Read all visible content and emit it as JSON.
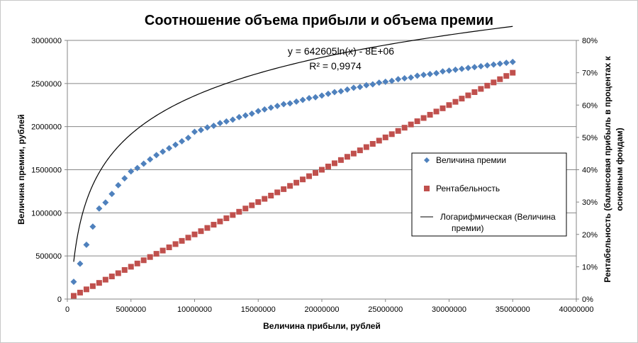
{
  "chart_data": {
    "type": "scatter",
    "title": "Соотношение объема прибыли и объема премии",
    "xlabel": "Величина прибыли, рублей",
    "ylabel": "Величина премии, рублей",
    "y2label_line1": "Рентабельность (балансовая прибыль в процентах к",
    "y2label_line2": "основным фондам)",
    "xlim": [
      0,
      40000000
    ],
    "ylim": [
      0,
      3000000
    ],
    "y2lim": [
      0,
      0.8
    ],
    "x_ticks": [
      0,
      5000000,
      10000000,
      15000000,
      20000000,
      25000000,
      30000000,
      35000000,
      40000000
    ],
    "x_tick_labels": [
      "0",
      "5000000",
      "10000000",
      "15000000",
      "20000000",
      "25000000",
      "30000000",
      "35000000",
      "40000000"
    ],
    "y_ticks": [
      0,
      500000,
      1000000,
      1500000,
      2000000,
      2500000,
      3000000
    ],
    "y_tick_labels": [
      "0",
      "500000",
      "1000000",
      "1500000",
      "2000000",
      "2500000",
      "3000000"
    ],
    "y2_ticks": [
      0,
      0.1,
      0.2,
      0.3,
      0.4,
      0.5,
      0.6,
      0.7,
      0.8
    ],
    "y2_tick_labels": [
      "0%",
      "10%",
      "20%",
      "30%",
      "40%",
      "50%",
      "60%",
      "70%",
      "80%"
    ],
    "grid": "horizontal",
    "legend_position": "right",
    "equation": "y = 642605ln(x) - 8E+06",
    "r_squared": "R² = 0,9974",
    "series": [
      {
        "name": "Величина премии",
        "marker": "diamond",
        "color": "#4f81bd",
        "axis": "left",
        "x": [
          500000,
          1000000,
          1500000,
          2000000,
          2500000,
          3000000,
          3500000,
          4000000,
          4500000,
          5000000,
          5500000,
          6000000,
          6500000,
          7000000,
          7500000,
          8000000,
          8500000,
          9000000,
          9500000,
          10000000,
          10500000,
          11000000,
          11500000,
          12000000,
          12500000,
          13000000,
          13500000,
          14000000,
          14500000,
          15000000,
          15500000,
          16000000,
          16500000,
          17000000,
          17500000,
          18000000,
          18500000,
          19000000,
          19500000,
          20000000,
          20500000,
          21000000,
          21500000,
          22000000,
          22500000,
          23000000,
          23500000,
          24000000,
          24500000,
          25000000,
          25500000,
          26000000,
          26500000,
          27000000,
          27500000,
          28000000,
          28500000,
          29000000,
          29500000,
          30000000,
          30500000,
          31000000,
          31500000,
          32000000,
          32500000,
          33000000,
          33500000,
          34000000,
          34500000,
          35000000
        ],
        "values": [
          200000,
          410000,
          630000,
          840000,
          1050000,
          1120000,
          1220000,
          1320000,
          1400000,
          1480000,
          1520000,
          1570000,
          1620000,
          1670000,
          1710000,
          1750000,
          1790000,
          1830000,
          1870000,
          1940000,
          1960000,
          1990000,
          2010000,
          2040000,
          2060000,
          2080000,
          2110000,
          2130000,
          2150000,
          2180000,
          2200000,
          2220000,
          2240000,
          2260000,
          2270000,
          2290000,
          2310000,
          2330000,
          2340000,
          2360000,
          2380000,
          2400000,
          2410000,
          2430000,
          2450000,
          2460000,
          2480000,
          2490000,
          2510000,
          2520000,
          2530000,
          2550000,
          2560000,
          2570000,
          2590000,
          2600000,
          2610000,
          2620000,
          2640000,
          2650000,
          2660000,
          2670000,
          2680000,
          2690000,
          2700000,
          2710000,
          2720000,
          2730000,
          2740000,
          2750000
        ]
      },
      {
        "name": "Рентабельность",
        "marker": "square",
        "color": "#c0504d",
        "axis": "right",
        "x": [
          500000,
          1000000,
          1500000,
          2000000,
          2500000,
          3000000,
          3500000,
          4000000,
          4500000,
          5000000,
          5500000,
          6000000,
          6500000,
          7000000,
          7500000,
          8000000,
          8500000,
          9000000,
          9500000,
          10000000,
          10500000,
          11000000,
          11500000,
          12000000,
          12500000,
          13000000,
          13500000,
          14000000,
          14500000,
          15000000,
          15500000,
          16000000,
          16500000,
          17000000,
          17500000,
          18000000,
          18500000,
          19000000,
          19500000,
          20000000,
          20500000,
          21000000,
          21500000,
          22000000,
          22500000,
          23000000,
          23500000,
          24000000,
          24500000,
          25000000,
          25500000,
          26000000,
          26500000,
          27000000,
          27500000,
          28000000,
          28500000,
          29000000,
          29500000,
          30000000,
          30500000,
          31000000,
          31500000,
          32000000,
          32500000,
          33000000,
          33500000,
          34000000,
          34500000,
          35000000
        ],
        "values": [
          0.01,
          0.02,
          0.03,
          0.04,
          0.05,
          0.06,
          0.07,
          0.08,
          0.09,
          0.1,
          0.11,
          0.12,
          0.13,
          0.14,
          0.15,
          0.16,
          0.17,
          0.18,
          0.19,
          0.2,
          0.21,
          0.22,
          0.23,
          0.24,
          0.25,
          0.26,
          0.27,
          0.28,
          0.29,
          0.3,
          0.31,
          0.32,
          0.33,
          0.34,
          0.35,
          0.36,
          0.37,
          0.38,
          0.39,
          0.4,
          0.41,
          0.42,
          0.43,
          0.44,
          0.45,
          0.46,
          0.47,
          0.48,
          0.49,
          0.5,
          0.51,
          0.52,
          0.53,
          0.54,
          0.55,
          0.56,
          0.57,
          0.58,
          0.59,
          0.6,
          0.61,
          0.62,
          0.63,
          0.64,
          0.65,
          0.66,
          0.67,
          0.68,
          0.69,
          0.7
        ]
      }
    ],
    "trendline": {
      "name": "Логарифмическая (Величина премии)",
      "legend_line1": "Логарифмическая (Величина",
      "legend_line2": "премии)",
      "type": "logarithmic",
      "a": 642605,
      "b": -8000000,
      "color": "#000000"
    }
  }
}
